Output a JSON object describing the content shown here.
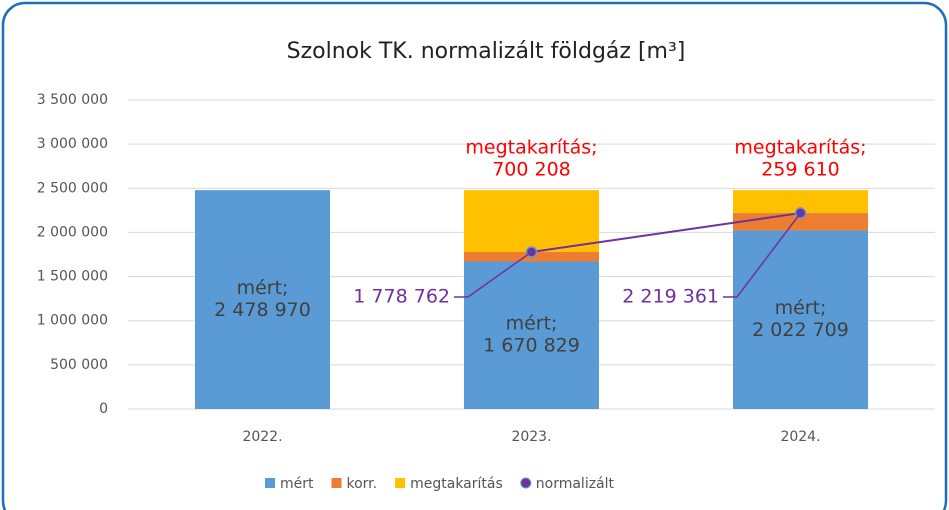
{
  "chart_data": {
    "type": "bar",
    "stacked": true,
    "title": "Szolnok TK. normalizált földgáz [m³]",
    "categories": [
      "2022.",
      "2023.",
      "2024."
    ],
    "series": [
      {
        "name": "mért",
        "color": "#5b9bd5",
        "values": [
          2478970,
          1670829,
          2022709
        ],
        "value_labels": [
          [
            "mért;",
            "2 478 970"
          ],
          [
            "mért;",
            "1 670 829"
          ],
          [
            "mért;",
            "2 022 709"
          ]
        ]
      },
      {
        "name": "korr.",
        "color": "#ed7d31",
        "values": [
          0,
          107933,
          196652
        ]
      },
      {
        "name": "megtakarítás",
        "color": "#ffc000",
        "values": [
          0,
          700208,
          259610
        ],
        "value_labels": [
          null,
          [
            "megtakarítás;",
            "700 208"
          ],
          [
            "megtakarítás;",
            "259 610"
          ]
        ]
      },
      {
        "name": "normalizált",
        "type": "line",
        "color": "#7030a0",
        "values": [
          null,
          1778762,
          2219361
        ],
        "value_labels": [
          null,
          "1 778 762",
          "2 219 361"
        ]
      }
    ],
    "ylim": [
      0,
      3500000
    ],
    "yticks": [
      0,
      {
        "value": 500000,
        "label": "500 000"
      },
      {
        "value": 1000000,
        "label": "1 000 000"
      },
      {
        "value": 1500000,
        "label": "1 500 000"
      },
      {
        "value": 2000000,
        "label": "2 000 000"
      },
      {
        "value": 2500000,
        "label": "2 500 000"
      },
      {
        "value": 3000000,
        "label": "3 000 000"
      },
      {
        "value": 3500000,
        "label": "3 500 000"
      }
    ],
    "grid": true,
    "legend": "bottom"
  }
}
